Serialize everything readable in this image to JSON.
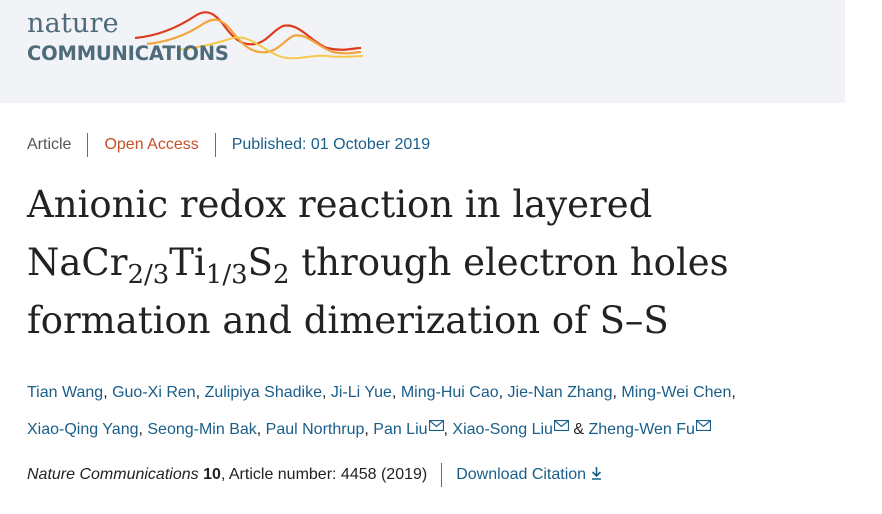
{
  "brand": {
    "nature": "nature",
    "communications": "COMMUNICATIONS",
    "text_color": "#4e6b7c",
    "wave_colors": [
      "#e03a1e",
      "#f2a33a",
      "#f6c94a"
    ]
  },
  "meta": {
    "type": "Article",
    "access": "Open Access",
    "published": "Published: 01 October 2019"
  },
  "title": {
    "line1": "Anionic redox reaction in layered",
    "formula_na": "NaCr",
    "formula_sub1": "2/3",
    "formula_ti": "Ti",
    "formula_sub2": "1/3",
    "formula_s": "S",
    "formula_sub3": "2",
    "line2_rest": " through electron holes",
    "line3": "formation and dimerization of S–S"
  },
  "authors": [
    {
      "name": "Tian Wang",
      "sep": ", ",
      "corresponding": false
    },
    {
      "name": "Guo-Xi Ren",
      "sep": ", ",
      "corresponding": false
    },
    {
      "name": "Zulipiya Shadike",
      "sep": ", ",
      "corresponding": false
    },
    {
      "name": "Ji-Li Yue",
      "sep": ", ",
      "corresponding": false
    },
    {
      "name": "Ming-Hui Cao",
      "sep": ", ",
      "corresponding": false
    },
    {
      "name": "Jie-Nan Zhang",
      "sep": ", ",
      "corresponding": false
    },
    {
      "name": "Ming-Wei Chen",
      "sep": ", ",
      "corresponding": false
    },
    {
      "name": "Xiao-Qing Yang",
      "sep": ", ",
      "corresponding": false
    },
    {
      "name": "Seong-Min Bak",
      "sep": ", ",
      "corresponding": false
    },
    {
      "name": "Paul Northrup",
      "sep": ", ",
      "corresponding": false
    },
    {
      "name": "Pan Liu",
      "sep": ", ",
      "corresponding": true
    },
    {
      "name": "Xiao-Song Liu",
      "sep": " & ",
      "corresponding": true
    },
    {
      "name": "Zheng-Wen Fu",
      "sep": "",
      "corresponding": true
    }
  ],
  "citation": {
    "journal": "Nature Communications",
    "volume": "10",
    "article": ", Article number: 4458 (2019)",
    "download": "Download Citation",
    "download_icon": "download-arrow-icon",
    "mail_icon": "envelope-icon"
  },
  "colors": {
    "link": "#1a5e8a",
    "open_access": "#c4502a",
    "masthead_bg": "#f1f3f6"
  }
}
